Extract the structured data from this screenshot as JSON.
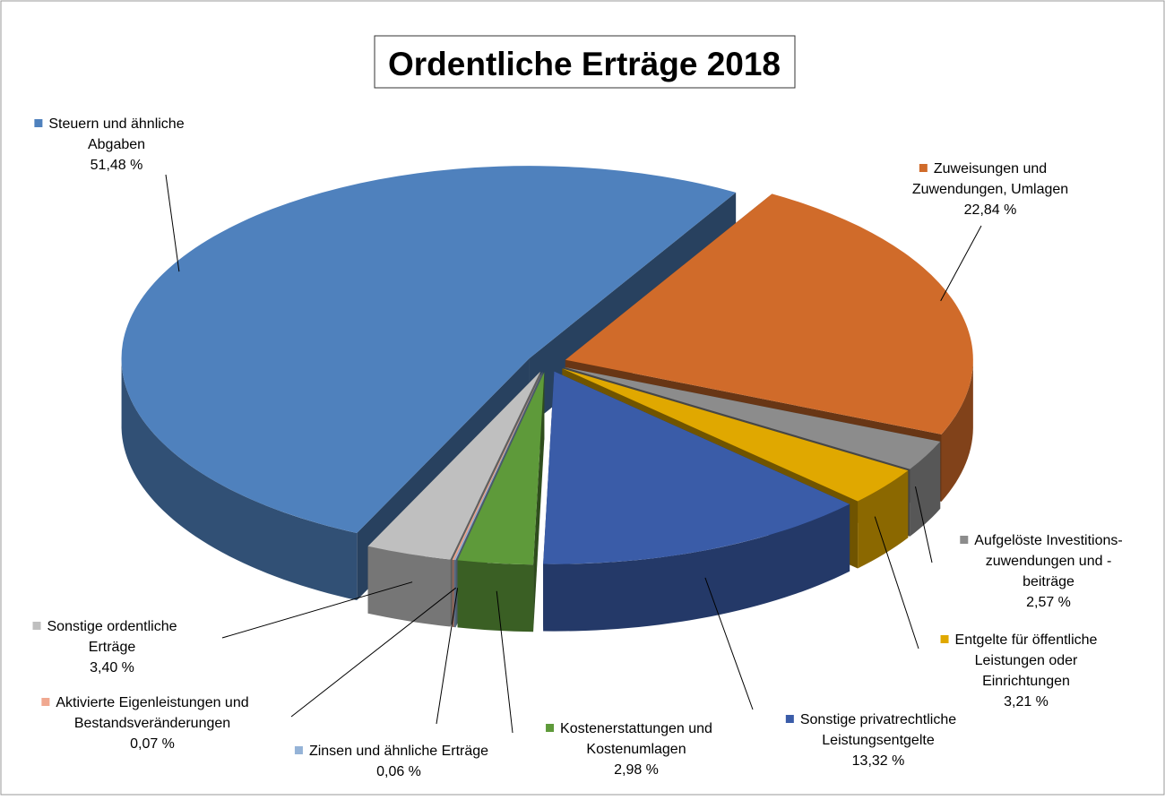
{
  "chart_data": {
    "type": "pie3d",
    "title": "Ordentliche Erträge 2018",
    "categories": [
      "Steuern und ähnliche\nAbgaben",
      "Zuweisungen und\nZuwendungen, Umlagen",
      "Aufgelöste Investitions-\nzuwendungen und -\nbeiträge",
      "Entgelte für öffentliche\nLeistungen oder\nEinrichtungen",
      "Sonstige privatrechtliche\nLeistungsentgelte",
      "Kostenerstattungen und\nKostenumlagen",
      "Zinsen und ähnliche Erträge",
      "Aktivierte Eigenleistungen und\nBestandsveränderungen",
      "Sonstige ordentliche\nErträge"
    ],
    "values": [
      51.48,
      22.84,
      2.57,
      3.21,
      13.32,
      2.98,
      0.06,
      0.07,
      3.4
    ],
    "value_labels": [
      "51,48 %",
      "22,84 %",
      "2,57 %",
      "3,21 %",
      "13,32 %",
      "2,98 %",
      "0,06 %",
      "0,07 %",
      "3,40 %"
    ],
    "colors": [
      "#4f81bd",
      "#d06b2a",
      "#8c8c8c",
      "#e0a800",
      "#3a5ca8",
      "#5e9a3a",
      "#95b3d7",
      "#f0a890",
      "#bfbfbf"
    ]
  }
}
